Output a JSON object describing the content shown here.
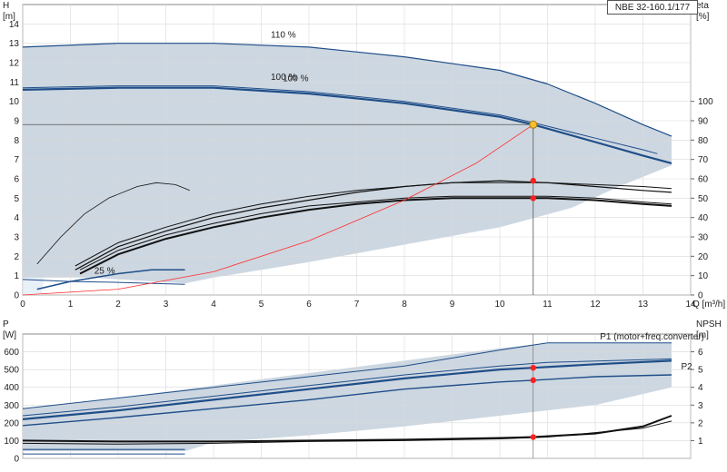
{
  "model": "NBE 32-160.1/177",
  "colors": {
    "envelope": "#cdd7e1",
    "envelope_light": "#e8f0f8",
    "pump_curve": "#1f4e89",
    "efficiency": "#111111",
    "system_curve": "#ff2a2a",
    "marker": "#ff2020",
    "op_point": "#f2c037",
    "grid": "#d9d9d9"
  },
  "chart_data": [
    {
      "type": "line",
      "name": "head-efficiency",
      "xlabel": "Q [m³/h]",
      "ylabel": "H\n[m]",
      "ylabel2": "eta\n[%]",
      "xlim": [
        0,
        14
      ],
      "ylim": [
        0,
        15
      ],
      "xticks": [
        0,
        1,
        2,
        3,
        4,
        5,
        6,
        7,
        8,
        9,
        10,
        11,
        12,
        13,
        14
      ],
      "yticks": [
        0,
        1,
        2,
        3,
        4,
        5,
        6,
        7,
        8,
        9,
        10,
        11,
        12,
        13,
        14
      ],
      "y2lim": [
        0,
        150
      ],
      "y2ticks": [
        0,
        10,
        20,
        30,
        40,
        50,
        60,
        70,
        80,
        90,
        100
      ],
      "envelope": [
        [
          0,
          12.8
        ],
        [
          2,
          13.0
        ],
        [
          4,
          13.0
        ],
        [
          6,
          12.8
        ],
        [
          8,
          12.3
        ],
        [
          10,
          11.6
        ],
        [
          11,
          10.9
        ],
        [
          12,
          9.9
        ],
        [
          13,
          8.8
        ],
        [
          13.6,
          8.2
        ],
        [
          13.6,
          6.7
        ],
        [
          12.5,
          5.6
        ],
        [
          11.5,
          4.5
        ],
        [
          10,
          3.5
        ],
        [
          8,
          2.6
        ],
        [
          6,
          1.7
        ],
        [
          4,
          0.9
        ],
        [
          3.4,
          0.6
        ],
        [
          1.4,
          0.9
        ],
        [
          0,
          0.9
        ]
      ],
      "envelope_light": [
        [
          0,
          12.8
        ],
        [
          1.5,
          12.9
        ],
        [
          1.0,
          8.0
        ],
        [
          0.5,
          2.0
        ],
        [
          0.4,
          0.0
        ],
        [
          0,
          0
        ]
      ],
      "series": [
        {
          "name": "110 %",
          "role": "head",
          "width": 1.2,
          "points": [
            [
              0,
              12.8
            ],
            [
              2,
              13.0
            ],
            [
              4,
              13.0
            ],
            [
              6,
              12.8
            ],
            [
              8,
              12.3
            ],
            [
              10,
              11.6
            ],
            [
              11,
              10.9
            ],
            [
              12,
              9.9
            ],
            [
              13,
              8.8
            ],
            [
              13.6,
              8.2
            ]
          ]
        },
        {
          "name": "100 %",
          "role": "head",
          "width": 2.2,
          "points": [
            [
              0,
              10.6
            ],
            [
              2,
              10.7
            ],
            [
              4,
              10.7
            ],
            [
              6,
              10.4
            ],
            [
              8,
              9.9
            ],
            [
              10,
              9.2
            ],
            [
              10.7,
              8.8
            ],
            [
              12,
              7.9
            ],
            [
              13,
              7.2
            ],
            [
              13.6,
              6.8
            ]
          ]
        },
        {
          "name": "100 %",
          "role": "head",
          "width": 1.0,
          "offset": true,
          "points": [
            [
              0,
              10.7
            ],
            [
              2,
              10.8
            ],
            [
              4,
              10.8
            ],
            [
              6,
              10.5
            ],
            [
              8,
              10.0
            ],
            [
              10,
              9.3
            ],
            [
              10.7,
              8.9
            ],
            [
              12,
              8.1
            ],
            [
              13,
              7.5
            ],
            [
              13.3,
              7.3
            ]
          ]
        },
        {
          "name": "25 %",
          "role": "head",
          "width": 1.5,
          "points": [
            [
              0.3,
              0.3
            ],
            [
              1,
              0.7
            ],
            [
              2,
              1.1
            ],
            [
              2.7,
              1.3
            ],
            [
              3.4,
              1.3
            ]
          ]
        },
        {
          "role": "head",
          "width": 1.0,
          "points": [
            [
              0,
              0.8
            ],
            [
              1,
              0.7
            ],
            [
              2,
              0.65
            ],
            [
              3.4,
              0.55
            ]
          ]
        },
        {
          "role": "efficiency",
          "width": 1.2,
          "points": [
            [
              1.1,
              1.3
            ],
            [
              2,
              2.5
            ],
            [
              3,
              3.3
            ],
            [
              4,
              4.0
            ],
            [
              5,
              4.5
            ],
            [
              6,
              4.9
            ],
            [
              7,
              5.3
            ],
            [
              8,
              5.6
            ],
            [
              9,
              5.8
            ],
            [
              10,
              5.9
            ],
            [
              11,
              5.8
            ],
            [
              12,
              5.6
            ],
            [
              13,
              5.4
            ],
            [
              13.6,
              5.3
            ]
          ]
        },
        {
          "role": "efficiency",
          "width": 1.0,
          "points": [
            [
              1.1,
              1.5
            ],
            [
              2,
              2.7
            ],
            [
              3,
              3.5
            ],
            [
              4,
              4.2
            ],
            [
              5,
              4.7
            ],
            [
              6,
              5.1
            ],
            [
              7,
              5.4
            ],
            [
              8,
              5.6
            ],
            [
              9,
              5.8
            ],
            [
              10,
              5.8
            ],
            [
              11,
              5.8
            ],
            [
              12,
              5.7
            ],
            [
              13,
              5.6
            ],
            [
              13.6,
              5.5
            ]
          ]
        },
        {
          "role": "efficiency",
          "width": 2.0,
          "points": [
            [
              1.2,
              1.1
            ],
            [
              2,
              2.1
            ],
            [
              3,
              2.9
            ],
            [
              4,
              3.5
            ],
            [
              5,
              4.0
            ],
            [
              6,
              4.4
            ],
            [
              7,
              4.7
            ],
            [
              8,
              4.9
            ],
            [
              9,
              5.0
            ],
            [
              10,
              5.0
            ],
            [
              11,
              5.0
            ],
            [
              12,
              4.9
            ],
            [
              13,
              4.7
            ],
            [
              13.6,
              4.6
            ]
          ]
        },
        {
          "role": "efficiency",
          "width": 1.0,
          "points": [
            [
              1.2,
              1.3
            ],
            [
              2,
              2.3
            ],
            [
              3,
              3.1
            ],
            [
              4,
              3.7
            ],
            [
              5,
              4.2
            ],
            [
              6,
              4.6
            ],
            [
              7,
              4.8
            ],
            [
              8,
              5.0
            ],
            [
              9,
              5.1
            ],
            [
              10,
              5.1
            ],
            [
              11,
              5.1
            ],
            [
              12,
              5.0
            ],
            [
              13,
              4.8
            ],
            [
              13.6,
              4.7
            ]
          ]
        },
        {
          "role": "efficiency",
          "width": 0.8,
          "points": [
            [
              0.3,
              1.6
            ],
            [
              0.8,
              3.0
            ],
            [
              1.3,
              4.2
            ],
            [
              1.8,
              5.0
            ],
            [
              2.4,
              5.6
            ],
            [
              2.8,
              5.8
            ],
            [
              3.2,
              5.7
            ],
            [
              3.5,
              5.4
            ]
          ]
        },
        {
          "role": "system",
          "width": 0.8,
          "points": [
            [
              0,
              0
            ],
            [
              2,
              0.3
            ],
            [
              4,
              1.2
            ],
            [
              6,
              2.8
            ],
            [
              8,
              4.9
            ],
            [
              9.5,
              6.8
            ],
            [
              10.7,
              8.8
            ]
          ]
        }
      ],
      "markers": [
        {
          "x": 10.7,
          "y": 8.8,
          "kind": "duty"
        },
        {
          "x": 10.7,
          "y": 5.9,
          "kind": "point"
        },
        {
          "x": 10.7,
          "y": 5.0,
          "kind": "point"
        }
      ],
      "labels": [
        {
          "text": "110 %",
          "x": 5.2,
          "y": 13.3
        },
        {
          "text": "100 %",
          "x": 5.2,
          "y": 11.1
        },
        {
          "text": "100 %",
          "x": 5.45,
          "y": 11.05
        },
        {
          "text": "25 %",
          "x": 1.5,
          "y": 1.1
        }
      ]
    },
    {
      "type": "line",
      "name": "power-npsh",
      "ylabel": "P\n[W]",
      "ylabel2": "NPSH\n[m]",
      "xlim": [
        0,
        14
      ],
      "ylim": [
        0,
        700
      ],
      "yticks": [
        0,
        100,
        200,
        300,
        400,
        500,
        600
      ],
      "y2lim": [
        0,
        7
      ],
      "y2ticks": [
        1,
        2,
        3,
        4,
        5,
        6
      ],
      "envelope": [
        [
          0,
          280
        ],
        [
          2,
          340
        ],
        [
          4,
          410
        ],
        [
          6,
          480
        ],
        [
          8,
          550
        ],
        [
          10,
          620
        ],
        [
          11,
          650
        ],
        [
          12,
          650
        ],
        [
          13,
          650
        ],
        [
          13.6,
          650
        ],
        [
          13.6,
          400
        ],
        [
          12,
          300
        ],
        [
          10,
          240
        ],
        [
          8,
          180
        ],
        [
          6,
          130
        ],
        [
          4,
          90
        ],
        [
          3.4,
          40
        ],
        [
          0,
          40
        ]
      ],
      "series": [
        {
          "name": "P1 (motor+freq.converter)",
          "role": "power",
          "width": 1.0,
          "points": [
            [
              0,
              280
            ],
            [
              2,
              340
            ],
            [
              4,
              400
            ],
            [
              6,
              460
            ],
            [
              8,
              520
            ],
            [
              10,
              610
            ],
            [
              11,
              650
            ],
            [
              13.6,
              650
            ]
          ]
        },
        {
          "role": "power",
          "width": 1.0,
          "points": [
            [
              0,
              240
            ],
            [
              2,
              290
            ],
            [
              4,
              350
            ],
            [
              6,
              410
            ],
            [
              8,
              470
            ],
            [
              10,
              520
            ],
            [
              11,
              540
            ],
            [
              13.6,
              560
            ]
          ]
        },
        {
          "role": "power",
          "width": 2.2,
          "points": [
            [
              0,
              220
            ],
            [
              2,
              270
            ],
            [
              4,
              330
            ],
            [
              6,
              390
            ],
            [
              8,
              450
            ],
            [
              10,
              500
            ],
            [
              10.7,
              510
            ],
            [
              12,
              530
            ],
            [
              13.6,
              550
            ]
          ]
        },
        {
          "name": "P2",
          "role": "power",
          "width": 1.4,
          "points": [
            [
              0,
              185
            ],
            [
              2,
              230
            ],
            [
              4,
              280
            ],
            [
              6,
              330
            ],
            [
              8,
              390
            ],
            [
              10,
              430
            ],
            [
              10.7,
              440
            ],
            [
              12,
              460
            ],
            [
              13.6,
              470
            ]
          ]
        },
        {
          "role": "npsh",
          "width": 2.0,
          "points": [
            [
              0,
              1.0
            ],
            [
              2,
              0.95
            ],
            [
              4,
              0.95
            ],
            [
              6,
              1.0
            ],
            [
              8,
              1.05
            ],
            [
              10,
              1.15
            ],
            [
              10.7,
              1.2
            ],
            [
              12,
              1.4
            ],
            [
              13,
              1.8
            ],
            [
              13.6,
              2.4
            ]
          ]
        },
        {
          "role": "npsh",
          "width": 1.0,
          "points": [
            [
              0,
              0.85
            ],
            [
              2,
              0.8
            ],
            [
              4,
              0.85
            ],
            [
              6,
              0.95
            ],
            [
              8,
              1.0
            ],
            [
              10,
              1.1
            ],
            [
              11,
              1.2
            ],
            [
              12,
              1.45
            ],
            [
              13,
              1.7
            ],
            [
              13.6,
              2.1
            ]
          ]
        },
        {
          "role": "power",
          "width": 1.2,
          "points": [
            [
              0,
              0.5
            ],
            [
              3.4,
              0.5
            ]
          ],
          "npsh_scale": true
        },
        {
          "role": "power",
          "width": 1.0,
          "points": [
            [
              0,
              0.25
            ],
            [
              3.4,
              0.25
            ]
          ],
          "npsh_scale": true
        }
      ],
      "markers": [
        {
          "x": 10.7,
          "y": 510,
          "kind": "point"
        },
        {
          "x": 10.7,
          "y": 440,
          "kind": "point"
        },
        {
          "x": 10.7,
          "y": 120,
          "kind": "point"
        }
      ],
      "labels": [
        {
          "text": "P1 (motor+freq.converter)",
          "x": 12.1,
          "y": 670
        },
        {
          "text": "P2",
          "x": 13.8,
          "y": 500
        }
      ]
    }
  ]
}
